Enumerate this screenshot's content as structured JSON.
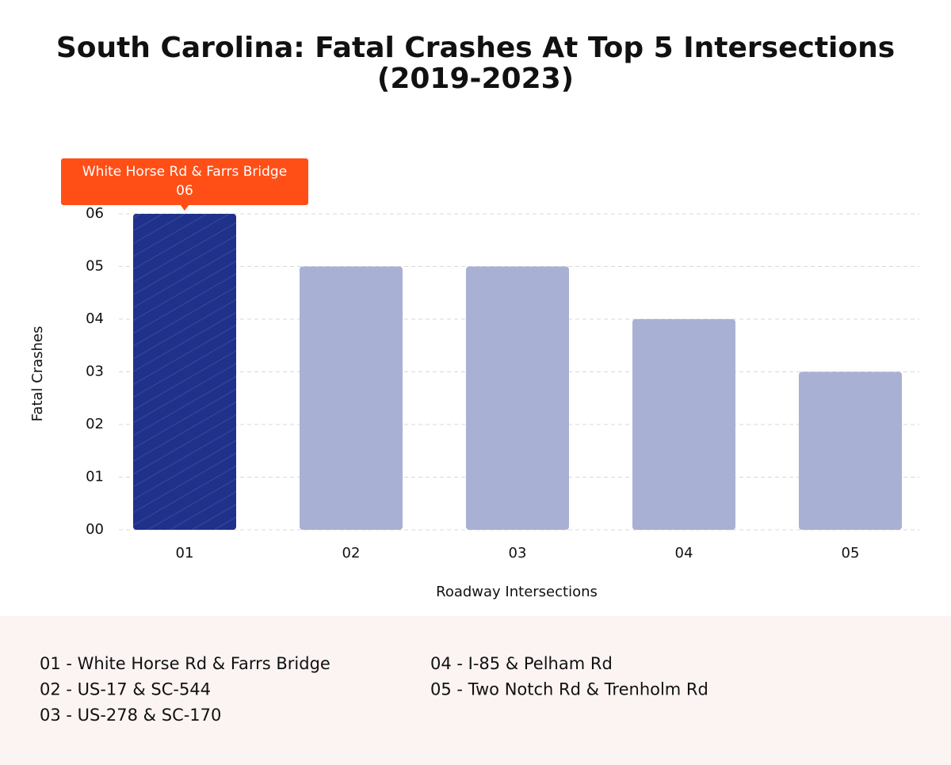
{
  "chart_data": {
    "type": "bar",
    "title": "South Carolina: Fatal Crashes At Top 5 Intersections",
    "subtitle": "(2019-2023)",
    "categories": [
      "01",
      "02",
      "03",
      "04",
      "05"
    ],
    "values": [
      6,
      5,
      5,
      4,
      3
    ],
    "value_labels": [
      "06",
      null,
      null,
      null,
      null
    ],
    "colors": [
      "#1f318a",
      "#a8b1d4",
      "#a8b1d4",
      "#a8b1d4",
      "#a8b1d4"
    ],
    "tooltip": {
      "title": "White Horse Rd & Farrs Bridge",
      "color": "#ff4f17"
    },
    "ylim": [
      0,
      6
    ],
    "yticks": [
      {
        "value": 0,
        "label": "00"
      },
      {
        "value": 1,
        "label": "01"
      },
      {
        "value": 2,
        "label": "02"
      },
      {
        "value": 3,
        "label": "03"
      },
      {
        "value": 4,
        "label": "04"
      },
      {
        "value": 5,
        "label": "05"
      },
      {
        "value": 6,
        "label": "06"
      }
    ],
    "grid": true,
    "xlabel": "Roadway Intersections",
    "ylabel": "Fatal Crashes",
    "key": [
      "01 - White Horse Rd & Farrs Bridge",
      "02 - US-17 & SC-544",
      "03 - US-278 & SC-170",
      "04 - I-85 & Pelham Rd",
      "05 - Two Notch Rd & Trenholm Rd"
    ]
  }
}
